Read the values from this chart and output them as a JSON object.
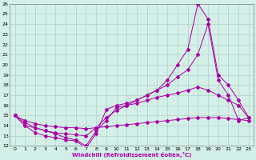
{
  "xlabel": "Windchill (Refroidissement éolien,°C)",
  "xlim": [
    -0.5,
    23.5
  ],
  "ylim": [
    12,
    26
  ],
  "xticks": [
    0,
    1,
    2,
    3,
    4,
    5,
    6,
    7,
    8,
    9,
    10,
    11,
    12,
    13,
    14,
    15,
    16,
    17,
    18,
    19,
    20,
    21,
    22,
    23
  ],
  "yticks": [
    12,
    13,
    14,
    15,
    16,
    17,
    18,
    19,
    20,
    21,
    22,
    23,
    24,
    25,
    26
  ],
  "bg_color": "#d4eee8",
  "grid_color": "#b0d4cc",
  "line_color": "#aa00aa",
  "series": [
    {
      "x": [
        0,
        1,
        2,
        3,
        4,
        5,
        6,
        7,
        8,
        9,
        10,
        11,
        12,
        13,
        14,
        15,
        16,
        17,
        18,
        19,
        20,
        21,
        22,
        23
      ],
      "y": [
        15,
        14,
        13.3,
        13,
        12.8,
        12.6,
        12.5,
        11.8,
        13.2,
        15.6,
        16.0,
        16.2,
        16.5,
        17.0,
        17.5,
        18.5,
        20.0,
        21.5,
        26.0,
        24.5,
        19.0,
        18.0,
        16.5,
        14.8
      ]
    },
    {
      "x": [
        0,
        1,
        2,
        3,
        4,
        5,
        6,
        7,
        8,
        9,
        10,
        11,
        12,
        13,
        14,
        15,
        16,
        17,
        18,
        19,
        20,
        21,
        22,
        23
      ],
      "y": [
        15,
        14.3,
        13.8,
        13.5,
        13.3,
        13.2,
        13.1,
        13.0,
        13.8,
        14.8,
        15.5,
        16.0,
        16.5,
        17.0,
        17.5,
        18.0,
        18.8,
        19.5,
        21.0,
        24.0,
        18.5,
        17.0,
        14.5,
        14.8
      ]
    },
    {
      "x": [
        0,
        1,
        2,
        3,
        4,
        5,
        6,
        7,
        8,
        9,
        10,
        11,
        12,
        13,
        14,
        15,
        16,
        17,
        18,
        19,
        20,
        21,
        22,
        23
      ],
      "y": [
        15,
        14.5,
        14.2,
        14.0,
        13.9,
        13.8,
        13.8,
        13.7,
        13.8,
        13.9,
        14.0,
        14.1,
        14.2,
        14.3,
        14.4,
        14.5,
        14.6,
        14.7,
        14.8,
        14.8,
        14.8,
        14.7,
        14.6,
        14.5
      ]
    },
    {
      "x": [
        0,
        1,
        2,
        3,
        4,
        5,
        6,
        7,
        8,
        9,
        10,
        11,
        12,
        13,
        14,
        15,
        16,
        17,
        18,
        19,
        20,
        21,
        22,
        23
      ],
      "y": [
        15,
        14.0,
        13.8,
        13.5,
        13.2,
        12.8,
        12.6,
        12.0,
        13.5,
        14.5,
        15.8,
        16.0,
        16.2,
        16.5,
        16.8,
        17.0,
        17.2,
        17.5,
        17.8,
        17.5,
        17.0,
        16.5,
        16.0,
        14.8
      ]
    }
  ]
}
